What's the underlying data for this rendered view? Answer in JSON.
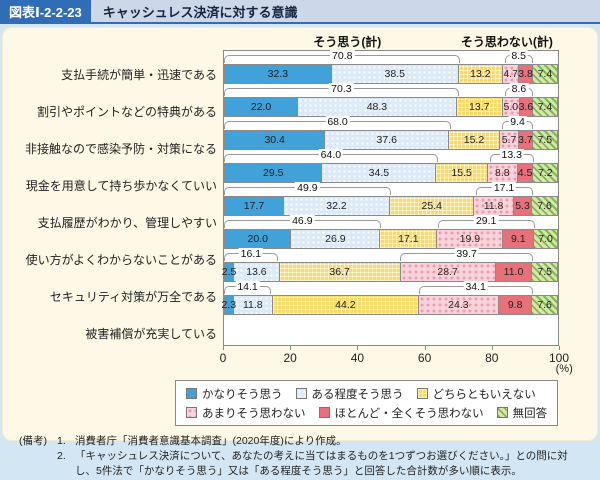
{
  "header": {
    "figure_number": "図表Ⅰ-2-2-23",
    "title": "キャッシュレス決済に対する意識"
  },
  "chart_data": {
    "type": "bar",
    "orientation": "horizontal",
    "stacked": true,
    "agree_header": "そう思う(計)",
    "disagree_header": "そう思わない(計)",
    "xlim": [
      0,
      100
    ],
    "x_ticks": [
      0,
      20,
      40,
      60,
      80,
      100
    ],
    "x_unit": "(%)",
    "legend_position": "bottom",
    "series_names": [
      "かなりそう思う",
      "ある程度そう思う",
      "どちらともいえない",
      "あまりそう思わない",
      "ほとんど・全くそう思わない",
      "無回答"
    ],
    "rows": [
      {
        "label": "支払手続が簡単・迅速である",
        "values": [
          32.3,
          38.5,
          13.2,
          4.7,
          3.8,
          7.4
        ],
        "agree_total": 70.8,
        "disagree_total": 8.5
      },
      {
        "label": "割引やポイントなどの特典がある",
        "values": [
          22.0,
          48.3,
          13.7,
          5.0,
          3.6,
          7.4
        ],
        "agree_total": 70.3,
        "disagree_total": 8.6
      },
      {
        "label": "非接触なので感染予防・対策になる",
        "values": [
          30.4,
          37.6,
          15.2,
          5.7,
          3.7,
          7.5
        ],
        "agree_total": 68.0,
        "disagree_total": 9.4
      },
      {
        "label": "現金を用意して持ち歩かなくていい",
        "values": [
          29.5,
          34.5,
          15.5,
          8.8,
          4.5,
          7.2
        ],
        "agree_total": 64.0,
        "disagree_total": 13.3
      },
      {
        "label": "支払履歴がわかり、管理しやすい",
        "values": [
          17.7,
          32.2,
          25.4,
          11.8,
          5.3,
          7.6
        ],
        "agree_total": 49.9,
        "disagree_total": 17.1
      },
      {
        "label": "使い方がよくわからないことがある",
        "values": [
          20.0,
          26.9,
          17.1,
          19.9,
          9.1,
          7.0
        ],
        "agree_total": 46.9,
        "disagree_total": 29.1
      },
      {
        "label": "セキュリティ対策が万全である",
        "values": [
          2.5,
          13.6,
          36.7,
          28.7,
          11.0,
          7.5
        ],
        "agree_total": 16.1,
        "disagree_total": 39.7
      },
      {
        "label": "被害補償が充実している",
        "values": [
          2.3,
          11.8,
          44.2,
          24.3,
          9.8,
          7.6
        ],
        "agree_total": 14.1,
        "disagree_total": 34.1
      }
    ]
  },
  "colors": {
    "page_background": "#d3e6f4",
    "card_background": "#fdf9e6",
    "figure_number_background": "#2f6eb6",
    "title_strip_background": "#ccd8ea",
    "segment_blue": "#41a1d9",
    "segment_lightblue": "#dce9f7",
    "segment_yellow": "#f8d969",
    "segment_pink": "#f9d3db",
    "segment_red": "#e8707b",
    "segment_green": "#d6e6b0",
    "bar_border": "#8a8a8a"
  },
  "note": {
    "label": "(備考)",
    "items": [
      {
        "no": "1.",
        "text": "消費者庁「消費者意識基本調査」(2020年度)により作成。"
      },
      {
        "no": "2.",
        "text": "「キャッシュレス決済について、あなたの考えに当てはまるものを1つずつお選びください。」との問に対し、5件法で「かなりそう思う」又は「ある程度そう思う」と回答した合計数が多い順に表示。"
      }
    ]
  }
}
